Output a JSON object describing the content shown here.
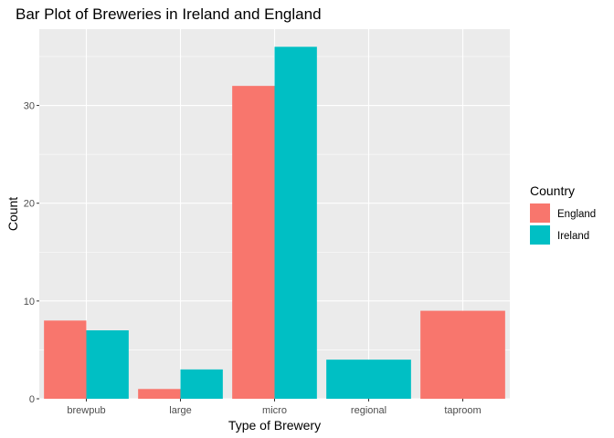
{
  "chart_data": {
    "type": "bar",
    "title": "Bar Plot of Breweries in Ireland and England",
    "xlabel": "Type of Brewery",
    "ylabel": "Count",
    "categories": [
      "brewpub",
      "large",
      "micro",
      "regional",
      "taproom"
    ],
    "ylim": [
      0,
      37.8
    ],
    "yticks": [
      0,
      10,
      20,
      30
    ],
    "grid": true,
    "legend_position": "right",
    "legend_title": "Country",
    "position": "dodge",
    "series": [
      {
        "name": "England",
        "color": "#F8766D",
        "values": [
          8,
          1,
          32,
          null,
          9
        ]
      },
      {
        "name": "Ireland",
        "color": "#00BFC4",
        "values": [
          7,
          3,
          36,
          4,
          null
        ]
      }
    ],
    "panel_background": "#EBEBEB",
    "grid_color": "#FFFFFF"
  }
}
